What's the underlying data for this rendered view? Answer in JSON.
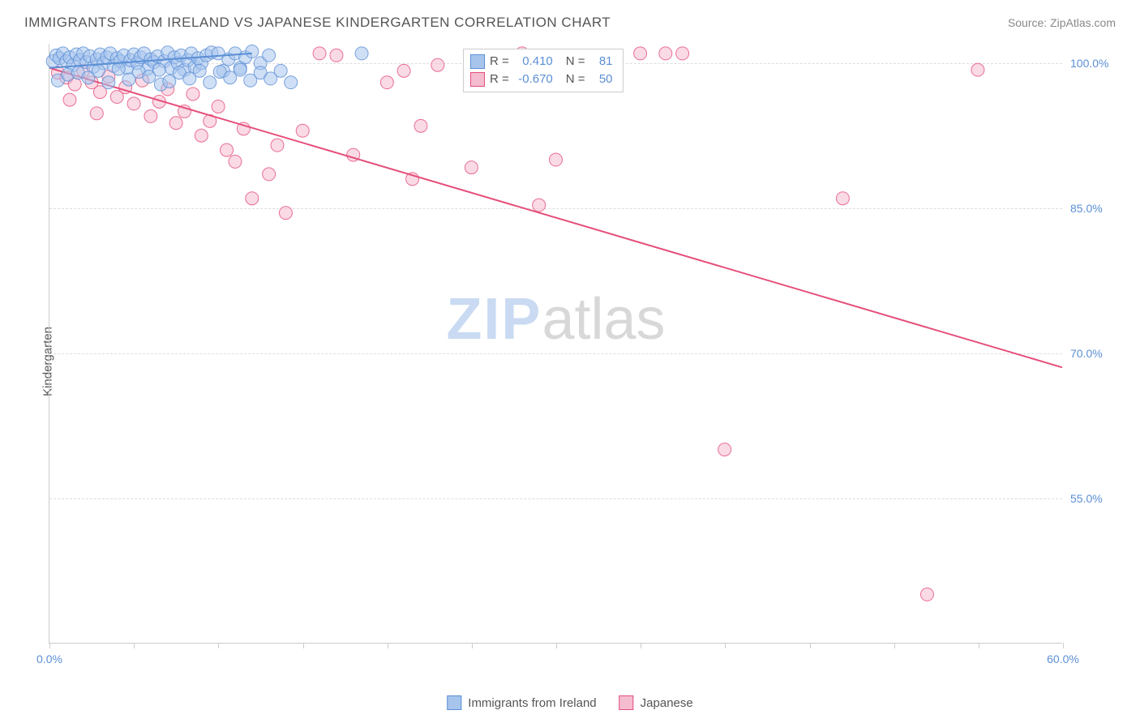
{
  "title": "IMMIGRANTS FROM IRELAND VS JAPANESE KINDERGARTEN CORRELATION CHART",
  "source": "Source: ZipAtlas.com",
  "watermark": {
    "part1": "ZIP",
    "part2": "atlas"
  },
  "chart": {
    "type": "scatter",
    "ylabel": "Kindergarten",
    "background_color": "#ffffff",
    "grid_color": "#dddddd",
    "axis_color": "#cccccc",
    "tick_label_color": "#5b8fd6",
    "label_color": "#555555",
    "label_fontsize": 15,
    "tick_fontsize": 14,
    "xlim": [
      0,
      60
    ],
    "ylim": [
      40,
      102
    ],
    "xtick_positions": [
      0,
      5,
      10,
      15,
      20,
      25,
      30,
      35,
      40,
      45,
      50,
      55,
      60
    ],
    "xtick_labels": {
      "0": "0.0%",
      "60": "60.0%"
    },
    "ytick_positions": [
      55,
      70,
      85,
      100
    ],
    "ytick_labels": {
      "55": "55.0%",
      "70": "70.0%",
      "85": "85.0%",
      "100": "100.0%"
    },
    "marker_radius": 8,
    "marker_opacity": 0.55,
    "line_width": 2,
    "series": [
      {
        "name": "Immigrants from Ireland",
        "fill_color": "#a7c5ec",
        "stroke_color": "#5b8fd6",
        "R": "0.410",
        "N": "81",
        "trend": {
          "x1": 0,
          "y1": 99.5,
          "x2": 12,
          "y2": 101
        },
        "points": [
          [
            0.2,
            100.2
          ],
          [
            0.4,
            100.8
          ],
          [
            0.6,
            100.5
          ],
          [
            0.8,
            101
          ],
          [
            1.0,
            100.2
          ],
          [
            1.2,
            100.6
          ],
          [
            1.4,
            99.8
          ],
          [
            1.6,
            100.9
          ],
          [
            1.8,
            100.3
          ],
          [
            2.0,
            101
          ],
          [
            2.2,
            100.1
          ],
          [
            2.4,
            100.7
          ],
          [
            2.6,
            99.6
          ],
          [
            2.8,
            100.4
          ],
          [
            3.0,
            100.9
          ],
          [
            3.2,
            100.0
          ],
          [
            3.4,
            100.6
          ],
          [
            3.6,
            101
          ],
          [
            3.8,
            99.7
          ],
          [
            4.0,
            100.5
          ],
          [
            4.2,
            100.2
          ],
          [
            4.4,
            100.8
          ],
          [
            4.6,
            99.5
          ],
          [
            4.8,
            100.3
          ],
          [
            5.0,
            100.9
          ],
          [
            5.2,
            100.0
          ],
          [
            5.4,
            100.6
          ],
          [
            5.6,
            101
          ],
          [
            5.8,
            99.4
          ],
          [
            6.0,
            100.4
          ],
          [
            6.2,
            100.1
          ],
          [
            6.4,
            100.7
          ],
          [
            6.6,
            97.8
          ],
          [
            6.8,
            100.2
          ],
          [
            7.0,
            101.1
          ],
          [
            7.2,
            99.5
          ],
          [
            7.4,
            100.6
          ],
          [
            7.6,
            100.0
          ],
          [
            7.8,
            100.8
          ],
          [
            8.0,
            99.3
          ],
          [
            8.2,
            100.3
          ],
          [
            8.4,
            101
          ],
          [
            8.6,
            99.6
          ],
          [
            8.8,
            100.5
          ],
          [
            9.0,
            100.0
          ],
          [
            9.3,
            100.8
          ],
          [
            9.6,
            101.1
          ],
          [
            10.0,
            101
          ],
          [
            10.3,
            99.2
          ],
          [
            10.6,
            100.4
          ],
          [
            11.0,
            101
          ],
          [
            11.3,
            99.5
          ],
          [
            11.6,
            100.6
          ],
          [
            12.0,
            101.2
          ],
          [
            12.5,
            100.0
          ],
          [
            13.0,
            100.8
          ],
          [
            18.5,
            101
          ],
          [
            0.5,
            98.2
          ],
          [
            1.1,
            98.8
          ],
          [
            1.7,
            99.0
          ],
          [
            2.3,
            98.5
          ],
          [
            2.9,
            99.2
          ],
          [
            3.5,
            98.0
          ],
          [
            4.1,
            99.4
          ],
          [
            4.7,
            98.3
          ],
          [
            5.3,
            99.1
          ],
          [
            5.9,
            98.6
          ],
          [
            6.5,
            99.3
          ],
          [
            7.1,
            98.1
          ],
          [
            7.7,
            99.0
          ],
          [
            8.3,
            98.4
          ],
          [
            8.9,
            99.2
          ],
          [
            9.5,
            98.0
          ],
          [
            10.1,
            99.1
          ],
          [
            10.7,
            98.5
          ],
          [
            11.3,
            99.3
          ],
          [
            11.9,
            98.2
          ],
          [
            12.5,
            99.0
          ],
          [
            13.1,
            98.4
          ],
          [
            13.7,
            99.2
          ],
          [
            14.3,
            98.0
          ]
        ]
      },
      {
        "name": "Japanese",
        "fill_color": "#f5bccf",
        "stroke_color": "#e54f7b",
        "R": "-0.670",
        "N": "50",
        "trend": {
          "x1": 0,
          "y1": 99.5,
          "x2": 60,
          "y2": 68.5
        },
        "points": [
          [
            0.5,
            99.0
          ],
          [
            1.0,
            98.5
          ],
          [
            1.5,
            97.8
          ],
          [
            2.0,
            99.2
          ],
          [
            2.5,
            98.0
          ],
          [
            3.0,
            97.0
          ],
          [
            3.5,
            98.6
          ],
          [
            4.0,
            96.5
          ],
          [
            4.5,
            97.5
          ],
          [
            5.0,
            95.8
          ],
          [
            5.5,
            98.2
          ],
          [
            6.0,
            94.5
          ],
          [
            6.5,
            96.0
          ],
          [
            7.0,
            97.3
          ],
          [
            7.5,
            93.8
          ],
          [
            8.0,
            95.0
          ],
          [
            8.5,
            96.8
          ],
          [
            9.0,
            92.5
          ],
          [
            9.5,
            94.0
          ],
          [
            10.0,
            95.5
          ],
          [
            10.5,
            91.0
          ],
          [
            11.0,
            89.8
          ],
          [
            11.5,
            93.2
          ],
          [
            12.0,
            86.0
          ],
          [
            13.0,
            88.5
          ],
          [
            13.5,
            91.5
          ],
          [
            14.0,
            84.5
          ],
          [
            15.0,
            93.0
          ],
          [
            16.0,
            101
          ],
          [
            17.0,
            100.8
          ],
          [
            18.0,
            90.5
          ],
          [
            20.0,
            98.0
          ],
          [
            21.0,
            99.2
          ],
          [
            21.5,
            88.0
          ],
          [
            22.0,
            93.5
          ],
          [
            23.0,
            99.8
          ],
          [
            25.0,
            89.2
          ],
          [
            28.0,
            101
          ],
          [
            29.0,
            85.3
          ],
          [
            30.0,
            90.0
          ],
          [
            32.0,
            99.5
          ],
          [
            35.0,
            101
          ],
          [
            37.5,
            101
          ],
          [
            40.0,
            60.0
          ],
          [
            47.0,
            86.0
          ],
          [
            52.0,
            45.0
          ],
          [
            55.0,
            99.3
          ],
          [
            36.5,
            101
          ],
          [
            1.2,
            96.2
          ],
          [
            2.8,
            94.8
          ]
        ]
      }
    ],
    "stats_legend": {
      "col1_label": "R =",
      "col2_label": "N ="
    },
    "bottom_legend": [
      {
        "label": "Immigrants from Ireland",
        "fill": "#a7c5ec",
        "stroke": "#5b8fd6"
      },
      {
        "label": "Japanese",
        "fill": "#f5bccf",
        "stroke": "#e54f7b"
      }
    ]
  }
}
